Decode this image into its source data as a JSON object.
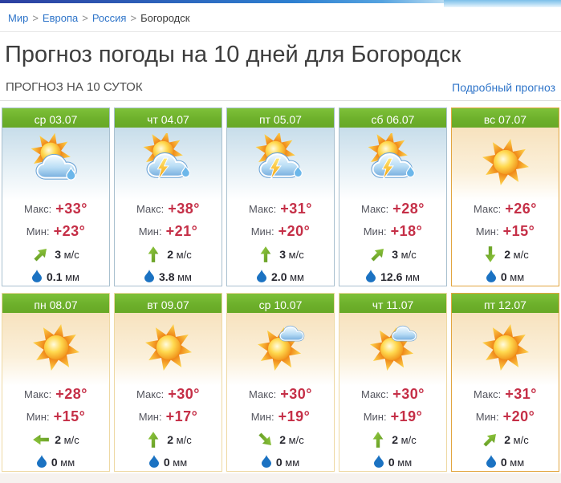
{
  "page": {
    "title": "Прогноз погоды на 10 дней для Богородск",
    "section_label": "ПРОГНОЗ НА 10 СУТОК",
    "detail_link": "Подробный прогноз"
  },
  "breadcrumb": {
    "links": [
      "Мир",
      "Европа",
      "Россия"
    ],
    "current": "Богородск",
    "separator": ">"
  },
  "labels": {
    "max": "Макс:",
    "min": "Мин:",
    "wind_unit": "м/с",
    "precip_unit": "мм"
  },
  "colors": {
    "header_green": "#6fb32a",
    "temp_value_red": "#c52f47",
    "link_blue": "#2e74c9",
    "wind_green": "#76ab2d",
    "drop_blue": "#1b72c2",
    "cool_border": "#a9c0cf",
    "warm_border": "#eed9a3",
    "highlight_border": "#e2a53f"
  },
  "cards": [
    {
      "date_label": "ср 03.07",
      "icon": "sun-cloud-rain",
      "max": "+33°",
      "min": "+23°",
      "wind_speed": "3",
      "wind_dir": "NE",
      "precip": "0.1",
      "variant": "cool"
    },
    {
      "date_label": "чт 04.07",
      "icon": "thunderstorm",
      "max": "+38°",
      "min": "+21°",
      "wind_speed": "2",
      "wind_dir": "N",
      "precip": "3.8",
      "variant": "cool"
    },
    {
      "date_label": "пт 05.07",
      "icon": "thunderstorm",
      "max": "+31°",
      "min": "+20°",
      "wind_speed": "3",
      "wind_dir": "N",
      "precip": "2.0",
      "variant": "cool"
    },
    {
      "date_label": "сб 06.07",
      "icon": "thunderstorm",
      "max": "+28°",
      "min": "+18°",
      "wind_speed": "3",
      "wind_dir": "NE",
      "precip": "12.6",
      "variant": "cool"
    },
    {
      "date_label": "вс 07.07",
      "icon": "sun",
      "max": "+26°",
      "min": "+15°",
      "wind_speed": "2",
      "wind_dir": "S",
      "precip": "0",
      "variant": "highlight"
    },
    {
      "date_label": "пн 08.07",
      "icon": "sun",
      "max": "+28°",
      "min": "+15°",
      "wind_speed": "2",
      "wind_dir": "W",
      "precip": "0",
      "variant": "warm"
    },
    {
      "date_label": "вт 09.07",
      "icon": "sun",
      "max": "+30°",
      "min": "+17°",
      "wind_speed": "2",
      "wind_dir": "N",
      "precip": "0",
      "variant": "warm"
    },
    {
      "date_label": "ср 10.07",
      "icon": "sun-small-cloud",
      "max": "+30°",
      "min": "+19°",
      "wind_speed": "2",
      "wind_dir": "SE",
      "precip": "0",
      "variant": "warm"
    },
    {
      "date_label": "чт 11.07",
      "icon": "sun-small-cloud",
      "max": "+30°",
      "min": "+19°",
      "wind_speed": "2",
      "wind_dir": "N",
      "precip": "0",
      "variant": "warm"
    },
    {
      "date_label": "пт 12.07",
      "icon": "sun",
      "max": "+31°",
      "min": "+20°",
      "wind_speed": "2",
      "wind_dir": "NE",
      "precip": "0",
      "variant": "highlight"
    }
  ]
}
